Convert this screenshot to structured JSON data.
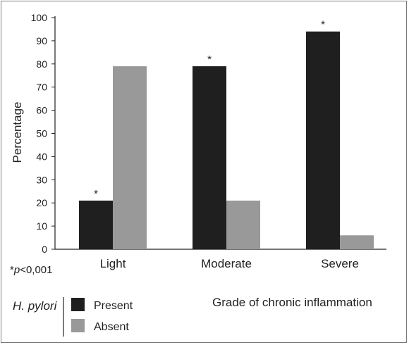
{
  "chart_data": {
    "type": "bar",
    "categories": [
      "Light",
      "Moderate",
      "Severe"
    ],
    "series": [
      {
        "name": "Present",
        "values": [
          21,
          79,
          94
        ],
        "color": "#1f1f1f"
      },
      {
        "name": "Absent",
        "values": [
          79,
          21,
          6
        ],
        "color": "#999999"
      }
    ],
    "significance_marks": [
      {
        "category": "Light",
        "series": "Present",
        "mark": "*"
      },
      {
        "category": "Moderate",
        "series": "Present",
        "mark": "*"
      },
      {
        "category": "Severe",
        "series": "Present",
        "mark": "*"
      }
    ],
    "ylabel": "Percentage",
    "xlabel": "Grade of chronic inflammation",
    "ylim": [
      0,
      100
    ],
    "yticks": [
      0,
      10,
      20,
      30,
      40,
      50,
      60,
      70,
      80,
      90,
      100
    ],
    "grid": false,
    "legend_title": "H. pylori",
    "legend_position": "bottom-left",
    "footnote_prefix": "*",
    "footnote_var": "p",
    "footnote_rest": "<0,001"
  }
}
